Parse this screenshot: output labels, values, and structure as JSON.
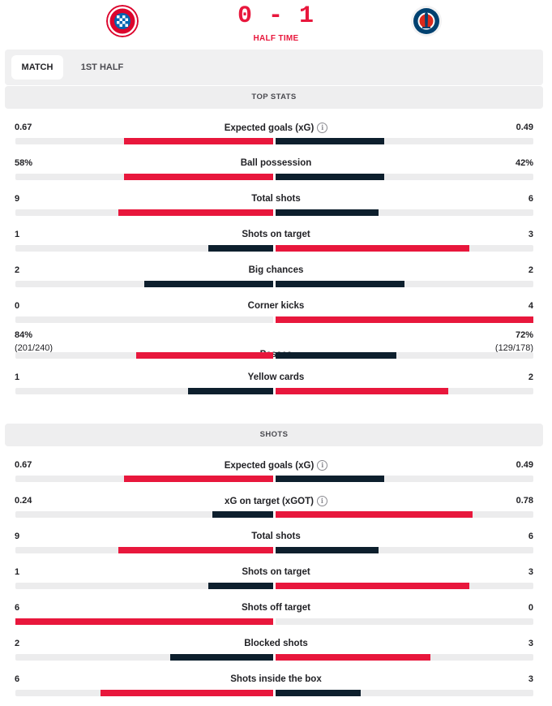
{
  "match": {
    "score": "0 - 1",
    "status": "HALF TIME",
    "home_logo": "bayern-munich-crest",
    "away_logo": "psg-crest"
  },
  "tabs": [
    {
      "label": "MATCH",
      "active": true
    },
    {
      "label": "1ST HALF",
      "active": false
    }
  ],
  "colors": {
    "red": "#e8173c",
    "dark": "#0d1f2d",
    "track": "#ececed"
  },
  "sections": [
    {
      "title": "TOP STATS",
      "stats": [
        {
          "label": "Expected goals (xG)",
          "info": true,
          "home": "0.67",
          "away": "0.49",
          "home_share": 0.58,
          "away_share": 0.42,
          "home_color": "red",
          "away_color": "dark"
        },
        {
          "label": "Ball possession",
          "info": false,
          "home": "58%",
          "away": "42%",
          "home_share": 0.58,
          "away_share": 0.42,
          "home_color": "red",
          "away_color": "dark"
        },
        {
          "label": "Total shots",
          "info": false,
          "home": "9",
          "away": "6",
          "home_share": 0.6,
          "away_share": 0.4,
          "home_color": "red",
          "away_color": "dark"
        },
        {
          "label": "Shots on target",
          "info": false,
          "home": "1",
          "away": "3",
          "home_share": 0.25,
          "away_share": 0.75,
          "home_color": "dark",
          "away_color": "red"
        },
        {
          "label": "Big chances",
          "info": false,
          "home": "2",
          "away": "2",
          "home_share": 0.5,
          "away_share": 0.5,
          "home_color": "dark",
          "away_color": "dark"
        },
        {
          "label": "Corner kicks",
          "info": false,
          "home": "0",
          "away": "4",
          "home_share": 0.0,
          "away_share": 1.0,
          "home_color": "dark",
          "away_color": "red"
        },
        {
          "label": "Passes",
          "info": false,
          "home": "84%",
          "away": "72%",
          "home_sub": "(201/240)",
          "away_sub": "(129/178)",
          "home_share": 0.53,
          "away_share": 0.47,
          "home_color": "red",
          "away_color": "dark"
        },
        {
          "label": "Yellow cards",
          "info": false,
          "home": "1",
          "away": "2",
          "home_share": 0.33,
          "away_share": 0.67,
          "home_color": "dark",
          "away_color": "red"
        }
      ]
    },
    {
      "title": "SHOTS",
      "stats": [
        {
          "label": "Expected goals (xG)",
          "info": true,
          "home": "0.67",
          "away": "0.49",
          "home_share": 0.58,
          "away_share": 0.42,
          "home_color": "red",
          "away_color": "dark"
        },
        {
          "label": "xG on target (xGOT)",
          "info": true,
          "home": "0.24",
          "away": "0.78",
          "home_share": 0.235,
          "away_share": 0.765,
          "home_color": "dark",
          "away_color": "red"
        },
        {
          "label": "Total shots",
          "info": false,
          "home": "9",
          "away": "6",
          "home_share": 0.6,
          "away_share": 0.4,
          "home_color": "red",
          "away_color": "dark"
        },
        {
          "label": "Shots on target",
          "info": false,
          "home": "1",
          "away": "3",
          "home_share": 0.25,
          "away_share": 0.75,
          "home_color": "dark",
          "away_color": "red"
        },
        {
          "label": "Shots off target",
          "info": false,
          "home": "6",
          "away": "0",
          "home_share": 1.0,
          "away_share": 0.0,
          "home_color": "red",
          "away_color": "dark"
        },
        {
          "label": "Blocked shots",
          "info": false,
          "home": "2",
          "away": "3",
          "home_share": 0.4,
          "away_share": 0.6,
          "home_color": "dark",
          "away_color": "red"
        },
        {
          "label": "Shots inside the box",
          "info": false,
          "home": "6",
          "away": "3",
          "home_share": 0.67,
          "away_share": 0.33,
          "home_color": "red",
          "away_color": "dark"
        }
      ]
    }
  ]
}
